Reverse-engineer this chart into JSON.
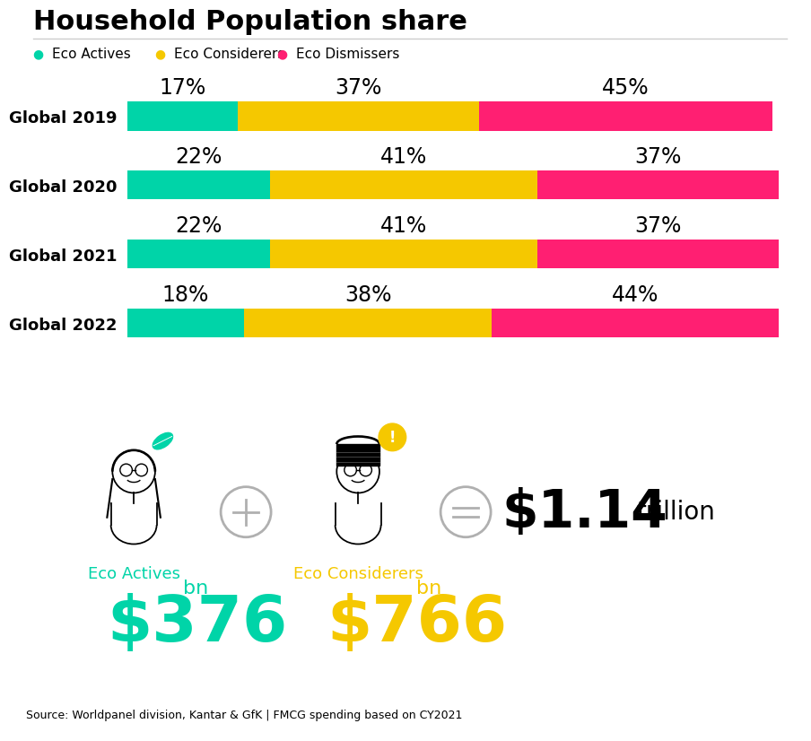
{
  "title": "Household Population share",
  "title_fontsize": 22,
  "background_color": "#ffffff",
  "categories": [
    "Global 2019",
    "Global 2020",
    "Global 2021",
    "Global 2022"
  ],
  "eco_actives": [
    17,
    22,
    22,
    18
  ],
  "eco_considerers": [
    37,
    41,
    41,
    38
  ],
  "eco_dismissers": [
    45,
    37,
    37,
    44
  ],
  "color_actives": "#00D4A8",
  "color_considerers": "#F5C800",
  "color_dismissers": "#FF1F72",
  "legend_labels": [
    "Eco Actives",
    "Eco Considerers",
    "Eco Dismissers"
  ],
  "bar_height": 0.42,
  "label_fontsize": 17,
  "tick_fontsize": 13,
  "source_text": "Source: Worldpanel division, Kantar & GfK | FMCG spending based on CY2021",
  "eco_actives_label": "Eco Actives",
  "eco_actives_value": "$376",
  "eco_actives_unit": "bn",
  "eco_actives_color": "#00D4A8",
  "eco_considerers_label": "Eco Considerers",
  "eco_considerers_value": "$766",
  "eco_considerers_unit": "bn",
  "eco_considerers_color": "#F5C800",
  "total_value": "$1.14",
  "total_unit": "trillion"
}
